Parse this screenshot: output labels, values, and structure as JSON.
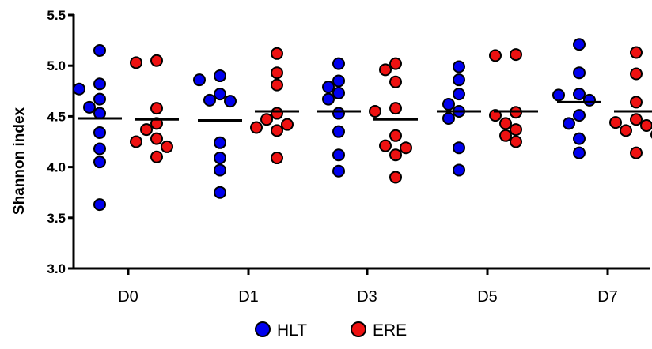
{
  "chart_data": {
    "type": "scatter",
    "title": "",
    "xlabel": "",
    "ylabel": "Shannon index",
    "ylim": [
      3.0,
      5.5
    ],
    "yticks": [
      "3.0",
      "3.5",
      "4.0",
      "4.5",
      "5.0",
      "5.5"
    ],
    "categories": [
      "D0",
      "D1",
      "D3",
      "D5",
      "D7"
    ],
    "grid": false,
    "legend_position": "bottom-center",
    "series": [
      {
        "name": "HLT",
        "color": "#0000ee",
        "points": [
          [
            5.15,
            4.82,
            4.77,
            4.67,
            4.59,
            4.53,
            4.34,
            4.18,
            4.05,
            3.63
          ],
          [
            4.9,
            4.86,
            4.72,
            4.66,
            4.65,
            4.24,
            4.09,
            3.97,
            3.75
          ],
          [
            5.02,
            4.85,
            4.79,
            4.73,
            4.67,
            4.53,
            4.35,
            4.12,
            3.96
          ],
          [
            4.99,
            4.86,
            4.72,
            4.62,
            4.55,
            4.48,
            4.19,
            3.97
          ],
          [
            5.21,
            4.93,
            4.72,
            4.71,
            4.66,
            4.51,
            4.43,
            4.28,
            4.14
          ]
        ],
        "means": [
          4.48,
          4.46,
          4.55,
          4.55,
          4.64
        ]
      },
      {
        "name": "ERE",
        "color": "#ee1111",
        "points": [
          [
            5.05,
            5.03,
            4.58,
            4.43,
            4.37,
            4.28,
            4.25,
            4.2,
            4.1
          ],
          [
            5.12,
            4.93,
            4.81,
            4.53,
            4.47,
            4.42,
            4.39,
            4.36,
            4.09
          ],
          [
            5.02,
            4.96,
            4.84,
            4.58,
            4.55,
            4.31,
            4.21,
            4.19,
            4.12,
            3.9
          ],
          [
            5.11,
            5.1,
            4.54,
            4.51,
            4.43,
            4.37,
            4.31,
            4.25
          ],
          [
            5.13,
            4.92,
            4.64,
            4.47,
            4.44,
            4.41,
            4.36,
            4.32,
            4.14
          ]
        ],
        "means": [
          4.47,
          4.55,
          4.47,
          4.55,
          4.55
        ]
      }
    ]
  }
}
